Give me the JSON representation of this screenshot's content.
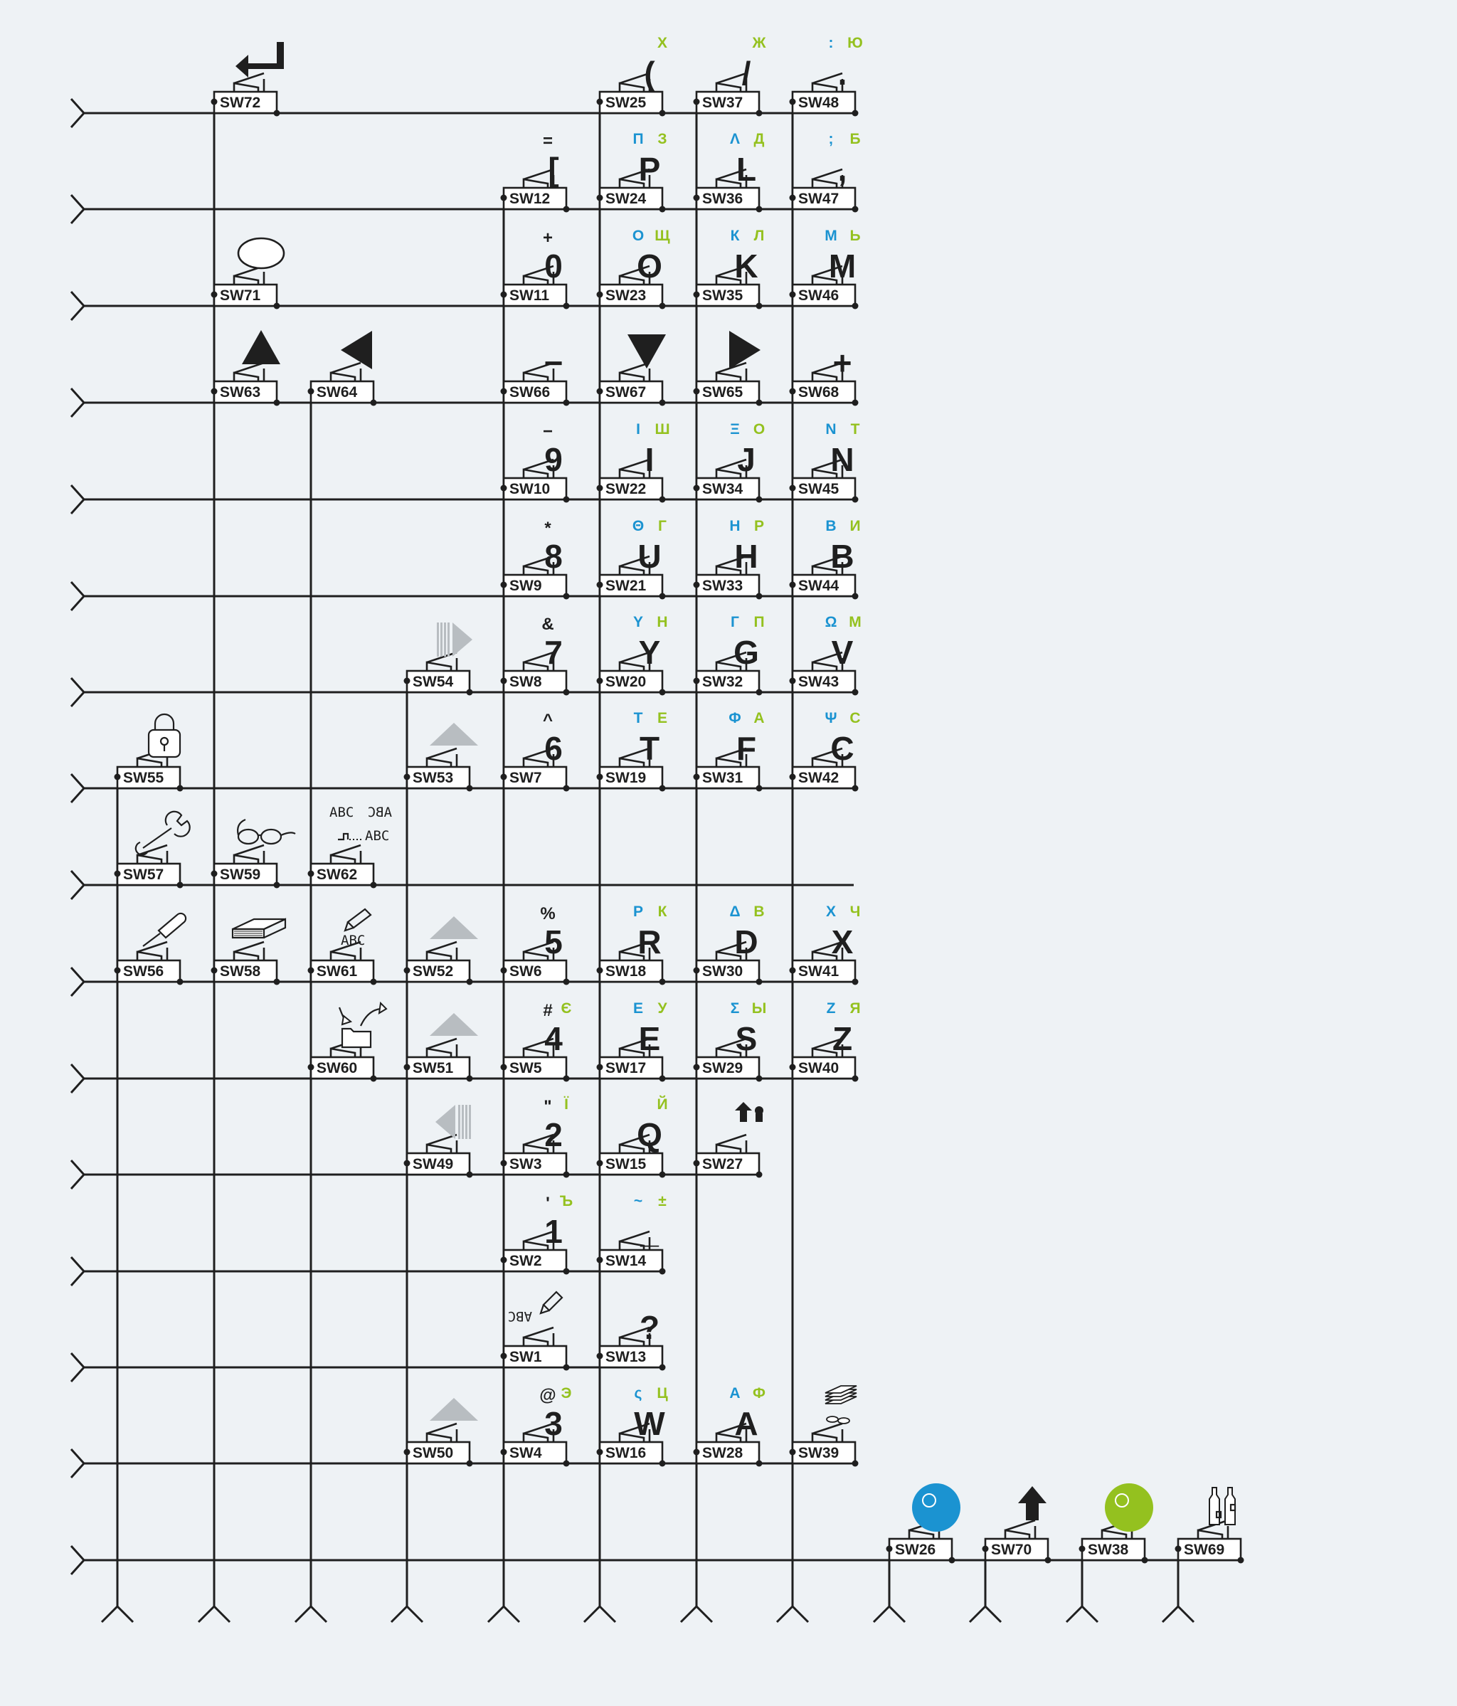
{
  "colors": {
    "background": "#eef2f5",
    "line": "#1f1f1f",
    "blue": "#1b93d1",
    "green": "#94c11f",
    "grey": "#b8bdc1"
  },
  "switches": [
    {
      "id": "SW72",
      "col": 1,
      "row": 0,
      "icon": "enter-icon"
    },
    {
      "id": "SW25",
      "col": 5,
      "row": 0,
      "main": "(",
      "green": "Х"
    },
    {
      "id": "SW37",
      "col": 6,
      "row": 0,
      "main": "/",
      "green": "Ж"
    },
    {
      "id": "SW48",
      "col": 7,
      "row": 0,
      "main": ".",
      "green": "Ю",
      "blue": ":"
    },
    {
      "id": "SW12",
      "col": 4,
      "row": 1,
      "main": "[",
      "top": "="
    },
    {
      "id": "SW24",
      "col": 5,
      "row": 1,
      "main": "P",
      "blue": "П",
      "green": "З"
    },
    {
      "id": "SW36",
      "col": 6,
      "row": 1,
      "main": "L",
      "blue": "Λ",
      "green": "Д"
    },
    {
      "id": "SW47",
      "col": 7,
      "row": 1,
      "main": ",",
      "blue": ";",
      "green": "Б"
    },
    {
      "id": "SW71",
      "col": 1,
      "row": 2,
      "icon": "ellipse-icon"
    },
    {
      "id": "SW11",
      "col": 4,
      "row": 2,
      "main": "0",
      "top": "+"
    },
    {
      "id": "SW23",
      "col": 5,
      "row": 2,
      "main": "O",
      "blue": "О",
      "green": "Щ"
    },
    {
      "id": "SW35",
      "col": 6,
      "row": 2,
      "main": "K",
      "blue": "К",
      "green": "Л"
    },
    {
      "id": "SW46",
      "col": 7,
      "row": 2,
      "main": "M",
      "blue": "М",
      "green": "Ь"
    },
    {
      "id": "SW63",
      "col": 1,
      "row": 3,
      "icon": "arrow-up-icon"
    },
    {
      "id": "SW64",
      "col": 2,
      "row": 3,
      "icon": "arrow-left-icon"
    },
    {
      "id": "SW66",
      "col": 4,
      "row": 3,
      "main": "−"
    },
    {
      "id": "SW67",
      "col": 5,
      "row": 3,
      "icon": "arrow-down-icon"
    },
    {
      "id": "SW65",
      "col": 6,
      "row": 3,
      "icon": "arrow-right-icon"
    },
    {
      "id": "SW68",
      "col": 7,
      "row": 3,
      "main": "+"
    },
    {
      "id": "SW10",
      "col": 4,
      "row": 4,
      "main": "9",
      "top": "−"
    },
    {
      "id": "SW22",
      "col": 5,
      "row": 4,
      "main": "I",
      "blue": "І",
      "green": "Ш"
    },
    {
      "id": "SW34",
      "col": 6,
      "row": 4,
      "main": "J",
      "blue": "Ξ",
      "green": "О"
    },
    {
      "id": "SW45",
      "col": 7,
      "row": 4,
      "main": "N",
      "blue": "N",
      "green": "Т"
    },
    {
      "id": "SW9",
      "col": 4,
      "row": 5,
      "main": "8",
      "top": "*"
    },
    {
      "id": "SW21",
      "col": 5,
      "row": 5,
      "main": "U",
      "blue": "Θ",
      "green": "Г"
    },
    {
      "id": "SW33",
      "col": 6,
      "row": 5,
      "main": "H",
      "blue": "Η",
      "green": "Р"
    },
    {
      "id": "SW44",
      "col": 7,
      "row": 5,
      "main": "B",
      "blue": "В",
      "green": "И"
    },
    {
      "id": "SW54",
      "col": 3,
      "row": 6,
      "icon": "fast-forward-icon"
    },
    {
      "id": "SW8",
      "col": 4,
      "row": 6,
      "main": "7",
      "top": "&"
    },
    {
      "id": "SW20",
      "col": 5,
      "row": 6,
      "main": "Y",
      "blue": "Υ",
      "green": "Н"
    },
    {
      "id": "SW32",
      "col": 6,
      "row": 6,
      "main": "G",
      "blue": "Г",
      "green": "П"
    },
    {
      "id": "SW43",
      "col": 7,
      "row": 6,
      "main": "V",
      "blue": "Ω",
      "green": "М"
    },
    {
      "id": "SW55",
      "col": 0,
      "row": 7,
      "icon": "lock-icon"
    },
    {
      "id": "SW53",
      "col": 3,
      "row": 7,
      "icon": "grey-triangle-icon"
    },
    {
      "id": "SW7",
      "col": 4,
      "row": 7,
      "main": "6",
      "top": "^"
    },
    {
      "id": "SW19",
      "col": 5,
      "row": 7,
      "main": "T",
      "blue": "Т",
      "green": "Е"
    },
    {
      "id": "SW31",
      "col": 6,
      "row": 7,
      "main": "F",
      "blue": "Φ",
      "green": "А"
    },
    {
      "id": "SW42",
      "col": 7,
      "row": 7,
      "main": "C",
      "blue": "Ψ",
      "green": "С"
    },
    {
      "id": "SW57",
      "col": 0,
      "row": 8,
      "icon": "wrench-icon"
    },
    {
      "id": "SW59",
      "col": 1,
      "row": 8,
      "icon": "glasses-icon"
    },
    {
      "id": "SW62",
      "col": 2,
      "row": 8,
      "icon": "mirror-text-icon"
    },
    {
      "id": "SW56",
      "col": 0,
      "row": 9,
      "icon": "screwdriver-icon"
    },
    {
      "id": "SW58",
      "col": 1,
      "row": 9,
      "icon": "book-icon"
    },
    {
      "id": "SW61",
      "col": 2,
      "row": 9,
      "icon": "pencil-abc-icon"
    },
    {
      "id": "SW52",
      "col": 3,
      "row": 9,
      "icon": "grey-triangle-icon"
    },
    {
      "id": "SW6",
      "col": 4,
      "row": 9,
      "main": "5",
      "top": "%"
    },
    {
      "id": "SW18",
      "col": 5,
      "row": 9,
      "main": "R",
      "blue": "Ρ",
      "green": "К"
    },
    {
      "id": "SW30",
      "col": 6,
      "row": 9,
      "main": "D",
      "blue": "Δ",
      "green": "В"
    },
    {
      "id": "SW41",
      "col": 7,
      "row": 9,
      "main": "X",
      "blue": "Χ",
      "green": "Ч"
    },
    {
      "id": "SW60",
      "col": 2,
      "row": 10,
      "icon": "folder-arrows-icon"
    },
    {
      "id": "SW51",
      "col": 3,
      "row": 10,
      "icon": "grey-triangle-icon"
    },
    {
      "id": "SW5",
      "col": 4,
      "row": 10,
      "main": "4",
      "top": "#",
      "green": "Є"
    },
    {
      "id": "SW17",
      "col": 5,
      "row": 10,
      "main": "E",
      "blue": "Ε",
      "green": "У"
    },
    {
      "id": "SW29",
      "col": 6,
      "row": 10,
      "main": "S",
      "blue": "Σ",
      "green": "Ы"
    },
    {
      "id": "SW40",
      "col": 7,
      "row": 10,
      "main": "Z",
      "blue": "Ζ",
      "green": "Я"
    },
    {
      "id": "SW49",
      "col": 3,
      "row": 11,
      "icon": "rewind-icon"
    },
    {
      "id": "SW3",
      "col": 4,
      "row": 11,
      "main": "2",
      "top": "\"",
      "green": "Ї"
    },
    {
      "id": "SW15",
      "col": 5,
      "row": 11,
      "main": "Q",
      "green": "Й"
    },
    {
      "id": "SW27",
      "col": 6,
      "row": 11,
      "icon": "shift-lock-icon"
    },
    {
      "id": "SW2",
      "col": 4,
      "row": 12,
      "main": "1",
      "top": "'",
      "green": "Ъ"
    },
    {
      "id": "SW14",
      "col": 5,
      "row": 12,
      "main": "_",
      "blue": "~",
      "green": "±"
    },
    {
      "id": "SW1",
      "col": 4,
      "row": 13,
      "icon": "pencil-abc-down-icon"
    },
    {
      "id": "SW13",
      "col": 5,
      "row": 13,
      "main": "?"
    },
    {
      "id": "SW50",
      "col": 3,
      "row": 14,
      "icon": "grey-triangle-icon"
    },
    {
      "id": "SW4",
      "col": 4,
      "row": 14,
      "main": "3",
      "top": "@",
      "green": "Э"
    },
    {
      "id": "SW16",
      "col": 5,
      "row": 14,
      "main": "W",
      "blue": "ς",
      "green": "Ц"
    },
    {
      "id": "SW28",
      "col": 6,
      "row": 14,
      "main": "A",
      "blue": "Α",
      "green": "Ф"
    },
    {
      "id": "SW39",
      "col": 7,
      "row": 14,
      "icon": "money-icon"
    },
    {
      "id": "SW26",
      "col": 8,
      "row": 15,
      "icon": "blue-ball-icon"
    },
    {
      "id": "SW70",
      "col": 9,
      "row": 15,
      "icon": "shift-arrow-icon"
    },
    {
      "id": "SW38",
      "col": 10,
      "row": 15,
      "icon": "green-ball-icon"
    },
    {
      "id": "SW69",
      "col": 11,
      "row": 15,
      "icon": "bottles-icon"
    }
  ]
}
